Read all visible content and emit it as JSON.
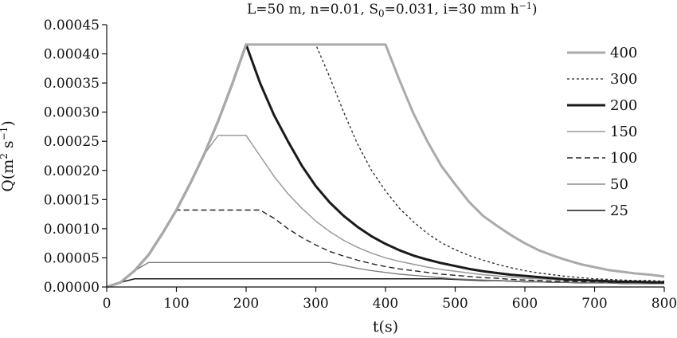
{
  "chart_data": {
    "type": "line",
    "title": {
      "pre": "L=50 m, n=0.01, S",
      "sub": "0",
      "mid": "=0.031, i=30 mm h",
      "sup": "−1",
      "post": ")"
    },
    "xlabel": "t(s)",
    "ylabel": {
      "pre": "Q(m",
      "sup1": "2",
      "mid": " s",
      "sup2": "−1",
      "post": ")"
    },
    "xlim": [
      0,
      800
    ],
    "ylim": [
      0,
      0.00045
    ],
    "x_ticks": [
      "0",
      "100",
      "200",
      "300",
      "400",
      "500",
      "600",
      "700",
      "800"
    ],
    "y_ticks": [
      "0.00000",
      "0.00005",
      "0.00010",
      "0.00015",
      "0.00020",
      "0.00025",
      "0.00030",
      "0.00035",
      "0.00040",
      "0.00045"
    ],
    "grid": false,
    "legend_position": "right",
    "series": [
      {
        "name": "400",
        "color": "#aaaaaa",
        "width": 3.0,
        "dash": "",
        "points": [
          [
            0,
            0
          ],
          [
            20,
            8e-06
          ],
          [
            40,
            2.8e-05
          ],
          [
            60,
            5.5e-05
          ],
          [
            80,
            9.2e-05
          ],
          [
            100,
            0.000132
          ],
          [
            120,
            0.000178
          ],
          [
            140,
            0.000228
          ],
          [
            160,
            0.000285
          ],
          [
            180,
            0.000348
          ],
          [
            200,
            0.000416
          ],
          [
            400,
            0.000416
          ],
          [
            420,
            0.000355
          ],
          [
            440,
            0.000298
          ],
          [
            460,
            0.00025
          ],
          [
            480,
            0.000208
          ],
          [
            500,
            0.000176
          ],
          [
            520,
            0.000146
          ],
          [
            540,
            0.000122
          ],
          [
            560,
            0.000105
          ],
          [
            580,
            8.9e-05
          ],
          [
            600,
            7.5e-05
          ],
          [
            620,
            6.3e-05
          ],
          [
            640,
            5.4e-05
          ],
          [
            660,
            4.6e-05
          ],
          [
            680,
            3.9e-05
          ],
          [
            700,
            3.4e-05
          ],
          [
            720,
            2.9e-05
          ],
          [
            740,
            2.6e-05
          ],
          [
            760,
            2.3e-05
          ],
          [
            780,
            2.1e-05
          ],
          [
            800,
            1.8e-05
          ]
        ]
      },
      {
        "name": "300",
        "color": "#222222",
        "width": 1.3,
        "dash": "3,3",
        "points": [
          [
            0,
            0
          ],
          [
            20,
            8e-06
          ],
          [
            40,
            2.8e-05
          ],
          [
            60,
            5.5e-05
          ],
          [
            80,
            9.2e-05
          ],
          [
            100,
            0.000132
          ],
          [
            120,
            0.000178
          ],
          [
            140,
            0.000228
          ],
          [
            160,
            0.000285
          ],
          [
            180,
            0.000348
          ],
          [
            200,
            0.000416
          ],
          [
            300,
            0.000416
          ],
          [
            320,
            0.00036
          ],
          [
            340,
            0.0003
          ],
          [
            360,
            0.000245
          ],
          [
            380,
            0.0002
          ],
          [
            400,
            0.000165
          ],
          [
            420,
            0.000135
          ],
          [
            440,
            0.000112
          ],
          [
            460,
            9.2e-05
          ],
          [
            480,
            7.6e-05
          ],
          [
            500,
            6.4e-05
          ],
          [
            520,
            5.4e-05
          ],
          [
            540,
            4.6e-05
          ],
          [
            560,
            3.9e-05
          ],
          [
            580,
            3.3e-05
          ],
          [
            600,
            2.8e-05
          ],
          [
            620,
            2.4e-05
          ],
          [
            640,
            2.1e-05
          ],
          [
            660,
            1.8e-05
          ],
          [
            680,
            1.6e-05
          ],
          [
            700,
            1.4e-05
          ],
          [
            720,
            1.3e-05
          ],
          [
            740,
            1.2e-05
          ],
          [
            760,
            1.1e-05
          ],
          [
            780,
            1.1e-05
          ],
          [
            800,
            1e-05
          ]
        ]
      },
      {
        "name": "200",
        "color": "#1a1a1a",
        "width": 3.0,
        "dash": "",
        "points": [
          [
            0,
            0
          ],
          [
            20,
            8e-06
          ],
          [
            40,
            2.8e-05
          ],
          [
            60,
            5.5e-05
          ],
          [
            80,
            9.2e-05
          ],
          [
            100,
            0.000132
          ],
          [
            120,
            0.000178
          ],
          [
            140,
            0.000228
          ],
          [
            160,
            0.000285
          ],
          [
            180,
            0.000348
          ],
          [
            200,
            0.000416
          ],
          [
            220,
            0.00035
          ],
          [
            240,
            0.000295
          ],
          [
            260,
            0.00025
          ],
          [
            280,
            0.000208
          ],
          [
            300,
            0.000173
          ],
          [
            320,
            0.000145
          ],
          [
            340,
            0.000122
          ],
          [
            360,
            0.000103
          ],
          [
            380,
            8.7e-05
          ],
          [
            400,
            7.4e-05
          ],
          [
            420,
            6.3e-05
          ],
          [
            440,
            5.4e-05
          ],
          [
            460,
            4.7e-05
          ],
          [
            480,
            4.1e-05
          ],
          [
            500,
            3.6e-05
          ],
          [
            520,
            3.1e-05
          ],
          [
            540,
            2.7e-05
          ],
          [
            560,
            2.4e-05
          ],
          [
            580,
            2.1e-05
          ],
          [
            600,
            1.9e-05
          ],
          [
            620,
            1.7e-05
          ],
          [
            640,
            1.5e-05
          ],
          [
            660,
            1.3e-05
          ],
          [
            680,
            1.2e-05
          ],
          [
            700,
            1.1e-05
          ],
          [
            720,
            1e-05
          ],
          [
            740,
            9e-06
          ],
          [
            760,
            9e-06
          ],
          [
            780,
            8e-06
          ],
          [
            800,
            8e-06
          ]
        ]
      },
      {
        "name": "150",
        "color": "#9a9a9a",
        "width": 1.5,
        "dash": "",
        "points": [
          [
            0,
            0
          ],
          [
            20,
            8e-06
          ],
          [
            40,
            2.8e-05
          ],
          [
            60,
            5.5e-05
          ],
          [
            80,
            9.2e-05
          ],
          [
            100,
            0.000132
          ],
          [
            120,
            0.000178
          ],
          [
            140,
            0.000228
          ],
          [
            160,
            0.00026
          ],
          [
            200,
            0.00026
          ],
          [
            220,
            0.000225
          ],
          [
            240,
            0.00019
          ],
          [
            260,
            0.00016
          ],
          [
            280,
            0.000135
          ],
          [
            300,
            0.000113
          ],
          [
            320,
            9.5e-05
          ],
          [
            340,
            8e-05
          ],
          [
            360,
            6.8e-05
          ],
          [
            380,
            5.8e-05
          ],
          [
            400,
            5e-05
          ],
          [
            420,
            4.4e-05
          ],
          [
            440,
            3.9e-05
          ],
          [
            460,
            3.4e-05
          ],
          [
            480,
            3e-05
          ],
          [
            500,
            2.7e-05
          ],
          [
            520,
            2.4e-05
          ],
          [
            540,
            2.1e-05
          ],
          [
            560,
            1.9e-05
          ],
          [
            580,
            1.7e-05
          ],
          [
            600,
            1.5e-05
          ],
          [
            620,
            1.4e-05
          ],
          [
            640,
            1.3e-05
          ],
          [
            660,
            1.2e-05
          ],
          [
            680,
            1.1e-05
          ],
          [
            700,
            1e-05
          ],
          [
            720,
            9e-06
          ],
          [
            740,
            9e-06
          ],
          [
            760,
            8e-06
          ],
          [
            780,
            8e-06
          ],
          [
            800,
            7e-06
          ]
        ]
      },
      {
        "name": "100",
        "color": "#222222",
        "width": 1.4,
        "dash": "7,4",
        "points": [
          [
            0,
            0
          ],
          [
            20,
            8e-06
          ],
          [
            40,
            2.8e-05
          ],
          [
            60,
            5.5e-05
          ],
          [
            80,
            9.2e-05
          ],
          [
            100,
            0.000132
          ],
          [
            220,
            0.000132
          ],
          [
            240,
            0.000118
          ],
          [
            260,
            0.0001
          ],
          [
            280,
            8.5e-05
          ],
          [
            300,
            7.2e-05
          ],
          [
            320,
            6.1e-05
          ],
          [
            340,
            5.3e-05
          ],
          [
            360,
            4.6e-05
          ],
          [
            380,
            4e-05
          ],
          [
            400,
            3.5e-05
          ],
          [
            420,
            3.1e-05
          ],
          [
            440,
            2.8e-05
          ],
          [
            460,
            2.5e-05
          ],
          [
            480,
            2.2e-05
          ],
          [
            500,
            2e-05
          ],
          [
            520,
            1.8e-05
          ],
          [
            540,
            1.6e-05
          ],
          [
            560,
            1.5e-05
          ],
          [
            580,
            1.3e-05
          ],
          [
            600,
            1.2e-05
          ],
          [
            620,
            1.1e-05
          ],
          [
            640,
            1e-05
          ],
          [
            660,
            1e-05
          ],
          [
            680,
            9e-06
          ],
          [
            700,
            9e-06
          ],
          [
            720,
            8e-06
          ],
          [
            740,
            8e-06
          ],
          [
            760,
            8e-06
          ],
          [
            780,
            7e-06
          ],
          [
            800,
            7e-06
          ]
        ]
      },
      {
        "name": "50",
        "color": "#777777",
        "width": 1.3,
        "dash": "",
        "points": [
          [
            0,
            0
          ],
          [
            20,
            8e-06
          ],
          [
            40,
            2.8e-05
          ],
          [
            60,
            4.2e-05
          ],
          [
            320,
            4.2e-05
          ],
          [
            340,
            3.7e-05
          ],
          [
            360,
            3.2e-05
          ],
          [
            380,
            2.8e-05
          ],
          [
            400,
            2.5e-05
          ],
          [
            420,
            2.2e-05
          ],
          [
            440,
            2e-05
          ],
          [
            460,
            1.8e-05
          ],
          [
            480,
            1.6e-05
          ],
          [
            500,
            1.4e-05
          ],
          [
            520,
            1.3e-05
          ],
          [
            540,
            1.2e-05
          ],
          [
            560,
            1.1e-05
          ],
          [
            580,
            1e-05
          ],
          [
            600,
            9e-06
          ],
          [
            620,
            9e-06
          ],
          [
            640,
            8e-06
          ],
          [
            660,
            8e-06
          ],
          [
            680,
            7e-06
          ],
          [
            700,
            7e-06
          ],
          [
            720,
            7e-06
          ],
          [
            740,
            6e-06
          ],
          [
            760,
            6e-06
          ],
          [
            780,
            6e-06
          ],
          [
            800,
            6e-06
          ]
        ]
      },
      {
        "name": "25",
        "color": "#1a1a1a",
        "width": 1.6,
        "dash": "",
        "points": [
          [
            0,
            0
          ],
          [
            20,
            8e-06
          ],
          [
            40,
            1.4e-05
          ],
          [
            480,
            1.4e-05
          ],
          [
            500,
            1.3e-05
          ],
          [
            520,
            1.2e-05
          ],
          [
            540,
            1.1e-05
          ],
          [
            560,
            1.1e-05
          ],
          [
            580,
            1e-05
          ],
          [
            600,
            9e-06
          ],
          [
            620,
            9e-06
          ],
          [
            640,
            8e-06
          ],
          [
            660,
            8e-06
          ],
          [
            680,
            7e-06
          ],
          [
            700,
            7e-06
          ],
          [
            720,
            7e-06
          ],
          [
            740,
            6e-06
          ],
          [
            760,
            6e-06
          ],
          [
            780,
            6e-06
          ],
          [
            800,
            6e-06
          ]
        ]
      }
    ]
  }
}
